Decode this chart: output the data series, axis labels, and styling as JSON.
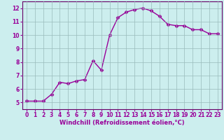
{
  "x": [
    0,
    1,
    2,
    3,
    4,
    5,
    6,
    7,
    8,
    9,
    10,
    11,
    12,
    13,
    14,
    15,
    16,
    17,
    18,
    19,
    20,
    21,
    22,
    23
  ],
  "y": [
    5.1,
    5.1,
    5.1,
    5.6,
    6.5,
    6.4,
    6.6,
    6.7,
    8.1,
    7.4,
    10.0,
    11.3,
    11.7,
    11.9,
    12.0,
    11.8,
    11.4,
    10.8,
    10.7,
    10.7,
    10.4,
    10.4,
    10.1,
    10.1
  ],
  "line_color": "#990099",
  "marker": "D",
  "marker_size": 2.5,
  "bg_color": "#cceeee",
  "grid_color": "#99bbbb",
  "xlabel": "Windchill (Refroidissement éolien,°C)",
  "xlabel_color": "#990099",
  "tick_color": "#990099",
  "spine_color": "#660066",
  "ylim": [
    4.5,
    12.5
  ],
  "xlim": [
    -0.5,
    23.5
  ],
  "yticks": [
    5,
    6,
    7,
    8,
    9,
    10,
    11,
    12
  ],
  "xticks": [
    0,
    1,
    2,
    3,
    4,
    5,
    6,
    7,
    8,
    9,
    10,
    11,
    12,
    13,
    14,
    15,
    16,
    17,
    18,
    19,
    20,
    21,
    22,
    23
  ],
  "tick_labelsize": 5.5,
  "xlabel_fontsize": 6,
  "line_width": 1.0
}
